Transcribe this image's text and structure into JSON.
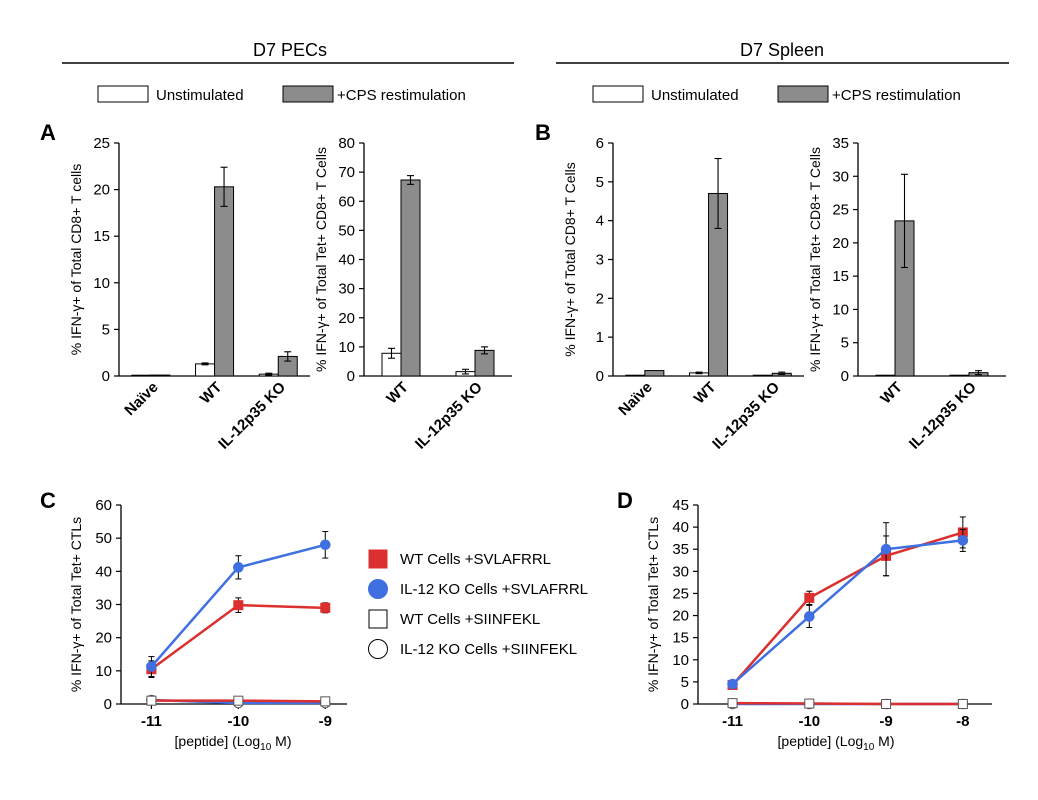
{
  "headers": [
    "D7 PECs",
    "D7 Spleen"
  ],
  "bar_legend": [
    "Unstimulated",
    "+CPS restimulation"
  ],
  "line_legend": [
    "WT Cells +SVLAFRRL",
    "IL-12 KO Cells +SVLAFRRL",
    "WT Cells +SIINFEKL",
    "IL-12 KO Cells +SIINFEKL"
  ],
  "colors": {
    "unstim": "#ffffff",
    "cps": "#8c8c8c",
    "wt": "#dc2f2f",
    "ko": "#3f6fe0"
  },
  "chart_data": [
    {
      "panel": "A",
      "type": "bar",
      "ylabel": "% IFN-γ+ of Total CD8+ T cells",
      "ylim": [
        0,
        25
      ],
      "yticks": [
        0,
        5,
        10,
        15,
        20,
        25
      ],
      "categories": [
        "Naïve",
        "WT",
        "IL-12p35 KO"
      ],
      "series": [
        {
          "name": "Unstimulated",
          "values": [
            0.05,
            1.3,
            0.2
          ],
          "errors": [
            0,
            0.1,
            0.1
          ]
        },
        {
          "name": "+CPS restimulation",
          "values": [
            0.1,
            20.3,
            2.1
          ],
          "errors": [
            0,
            2.1,
            0.5
          ]
        }
      ]
    },
    {
      "panel": "",
      "type": "bar",
      "ylabel": "% IFN-γ+ of Total Tet+ CD8+ T Cells",
      "ylim": [
        0,
        80
      ],
      "yticks": [
        0,
        10,
        20,
        30,
        40,
        50,
        60,
        70,
        80
      ],
      "categories": [
        "WT",
        "IL-12p35 KO"
      ],
      "series": [
        {
          "name": "Unstimulated",
          "values": [
            7.8,
            1.5
          ],
          "errors": [
            1.7,
            0.8
          ]
        },
        {
          "name": "+CPS restimulation",
          "values": [
            67.3,
            8.8
          ],
          "errors": [
            1.5,
            1.2
          ]
        }
      ]
    },
    {
      "panel": "B",
      "type": "bar",
      "ylabel": "% IFN-γ+ of Total CD8+ T Cells",
      "ylim": [
        0,
        6
      ],
      "yticks": [
        0,
        1,
        2,
        3,
        4,
        5,
        6
      ],
      "categories": [
        "Naïve",
        "WT",
        "IL-12p35 KO"
      ],
      "series": [
        {
          "name": "Unstimulated",
          "values": [
            0.01,
            0.08,
            0.02
          ],
          "errors": [
            0,
            0.02,
            0
          ]
        },
        {
          "name": "+CPS restimulation",
          "values": [
            0.14,
            4.7,
            0.07
          ],
          "errors": [
            0,
            0.9,
            0.03
          ]
        }
      ]
    },
    {
      "panel": "",
      "type": "bar",
      "ylabel": "% IFN-γ+ of Total Tet+ CD8+ T Cells",
      "ylim": [
        0,
        35
      ],
      "yticks": [
        0,
        5,
        10,
        15,
        20,
        25,
        30,
        35
      ],
      "categories": [
        "WT",
        "IL-12p35 KO"
      ],
      "series": [
        {
          "name": "Unstimulated",
          "values": [
            0,
            0
          ],
          "errors": [
            0,
            0
          ]
        },
        {
          "name": "+CPS restimulation",
          "values": [
            23.3,
            0.5
          ],
          "errors": [
            7.0,
            0.3
          ]
        }
      ]
    },
    {
      "panel": "C",
      "type": "line",
      "ylabel": "% IFN-γ+ of Total Tet+ CTLs",
      "xlabel": "[peptide] (Log",
      "xlabel_sub": "10",
      "xlabel_end": " M)",
      "x": [
        -11,
        -10,
        -9
      ],
      "xlim": [
        -11.35,
        -8.75
      ],
      "ylim": [
        0,
        60
      ],
      "yticks": [
        0,
        10,
        20,
        30,
        40,
        50,
        60
      ],
      "series": [
        {
          "name": "WT Cells +SVLAFRRL",
          "values": [
            10.5,
            29.8,
            29.0
          ],
          "errors": [
            2.5,
            2.2,
            1.5
          ]
        },
        {
          "name": "IL-12 KO Cells +SVLAFRRL",
          "values": [
            11.3,
            41.2,
            48.0
          ],
          "errors": [
            3.0,
            3.5,
            4.0
          ]
        },
        {
          "name": "WT Cells +SIINFEKL",
          "values": [
            1.0,
            1.0,
            0.8
          ],
          "errors": [
            0,
            0,
            0
          ]
        },
        {
          "name": "IL-12 KO Cells +SIINFEKL",
          "values": [
            1.2,
            0.3,
            0.3
          ],
          "errors": [
            0,
            0,
            0
          ]
        }
      ]
    },
    {
      "panel": "D",
      "type": "line",
      "ylabel": "% IFN-γ+ of Total Tet+ CTLs",
      "xlabel": "[peptide] (Log",
      "xlabel_sub": "10",
      "xlabel_end": " M)",
      "x": [
        -11,
        -10,
        -9,
        -8
      ],
      "xlim": [
        -11.45,
        -7.62
      ],
      "ylim": [
        0,
        45
      ],
      "yticks": [
        0,
        5,
        10,
        15,
        20,
        25,
        30,
        35,
        40,
        45
      ],
      "series": [
        {
          "name": "WT Cells +SVLAFRRL",
          "values": [
            4.3,
            24.0,
            33.5,
            38.8
          ],
          "errors": [
            0.5,
            1.5,
            4.5,
            3.5
          ]
        },
        {
          "name": "IL-12 KO Cells +SVLAFRRL",
          "values": [
            4.5,
            19.8,
            35.0,
            37.0
          ],
          "errors": [
            0.5,
            2.5,
            6.0,
            2.5
          ]
        },
        {
          "name": "WT Cells +SIINFEKL",
          "values": [
            0.2,
            0.1,
            0.0,
            0.0
          ],
          "errors": [
            0,
            0,
            0,
            0
          ]
        },
        {
          "name": "IL-12 KO Cells +SIINFEKL",
          "values": [
            0.0,
            0.0,
            0.0,
            0.0
          ],
          "errors": [
            0,
            0,
            0,
            0
          ]
        }
      ]
    }
  ]
}
